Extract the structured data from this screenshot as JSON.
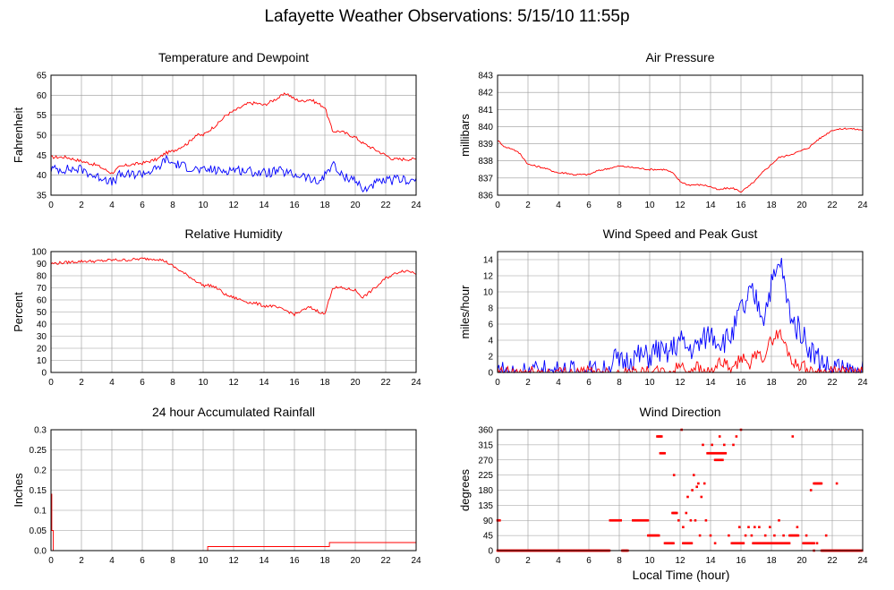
{
  "page": {
    "title": "Lafayette Weather Observations: 5/15/10 11:55p",
    "xlabel": "Local Time (hour)"
  },
  "colors": {
    "red": "#ff0000",
    "blue": "#0000ff",
    "grid": "#999999",
    "frame": "#000000"
  },
  "chart_data": [
    {
      "id": "temp",
      "type": "line",
      "title": "Temperature and Dewpoint",
      "xlabel": "",
      "ylabel": "Fahrenheit",
      "xlim": [
        0,
        24
      ],
      "ylim": [
        35,
        65
      ],
      "xticks": [
        "0",
        "2",
        "4",
        "6",
        "8",
        "10",
        "12",
        "14",
        "16",
        "18",
        "20",
        "22",
        "24"
      ],
      "yticks": [
        "35",
        "40",
        "45",
        "50",
        "55",
        "60",
        "65"
      ],
      "series": [
        {
          "color": "red",
          "noise": 0.4,
          "x": [
            0,
            1,
            2,
            3,
            4,
            4.5,
            5,
            6,
            7,
            7.5,
            8,
            9,
            9.5,
            10,
            10.5,
            11,
            11.5,
            12,
            12.5,
            13,
            13.5,
            14,
            14.5,
            15,
            15.5,
            16,
            16.5,
            17,
            17.5,
            18,
            18.5,
            19,
            20,
            20.5,
            21,
            22,
            22.5,
            23,
            24
          ],
          "y": [
            44.5,
            44.5,
            43.5,
            42.5,
            40.5,
            42,
            42.5,
            43,
            44,
            45.5,
            46,
            48,
            50,
            50,
            51.5,
            53,
            55,
            56,
            57,
            58,
            58,
            57.5,
            58.5,
            59.5,
            60.5,
            59,
            58.5,
            59,
            58,
            57,
            51,
            51,
            49.5,
            48,
            47,
            45,
            44,
            44,
            44
          ]
        },
        {
          "color": "blue",
          "noise": 1.2,
          "x": [
            0,
            1,
            2,
            3,
            3.5,
            4,
            4.5,
            5,
            6,
            7,
            7.5,
            8,
            9,
            10,
            10.5,
            11,
            12,
            13,
            14,
            15,
            15.5,
            16,
            16.5,
            17,
            17.5,
            18,
            18.5,
            19,
            20,
            20.5,
            21,
            22,
            23,
            24
          ],
          "y": [
            41.5,
            41.5,
            41.5,
            39.5,
            39.5,
            38,
            40,
            40,
            40.5,
            41.5,
            44,
            43,
            42,
            41,
            41.5,
            41,
            41.5,
            41,
            40.5,
            41,
            40.5,
            40,
            40,
            39,
            38,
            40,
            43,
            40,
            39,
            36,
            37.5,
            38.5,
            39,
            38.5
          ]
        }
      ]
    },
    {
      "id": "pressure",
      "type": "line",
      "title": "Air Pressure",
      "xlabel": "",
      "ylabel": "millibars",
      "xlim": [
        0,
        24
      ],
      "ylim": [
        836,
        843
      ],
      "xticks": [
        "0",
        "2",
        "4",
        "6",
        "8",
        "10",
        "12",
        "14",
        "16",
        "18",
        "20",
        "22",
        "24"
      ],
      "yticks": [
        "836",
        "837",
        "838",
        "839",
        "840",
        "841",
        "842",
        "843"
      ],
      "series": [
        {
          "color": "red",
          "noise": 0.05,
          "x": [
            0,
            0.5,
            1,
            1.5,
            2,
            3,
            4,
            4.5,
            5,
            6,
            6.5,
            7,
            7.5,
            8,
            9,
            10,
            10.5,
            11,
            11.5,
            12,
            12.5,
            13,
            13.5,
            14,
            14.5,
            15,
            15.5,
            16,
            16.5,
            17,
            17.5,
            18,
            18.5,
            19,
            20,
            20.5,
            21,
            21.5,
            22,
            23,
            24
          ],
          "y": [
            839.2,
            838.8,
            838.7,
            838.4,
            837.8,
            837.6,
            837.3,
            837.3,
            837.2,
            837.2,
            837.4,
            837.5,
            837.6,
            837.7,
            837.6,
            837.5,
            837.5,
            837.5,
            837.3,
            836.8,
            836.6,
            836.6,
            836.6,
            836.5,
            836.3,
            836.4,
            836.4,
            836.2,
            836.5,
            836.9,
            837.4,
            837.8,
            838.2,
            838.3,
            838.6,
            838.8,
            839.2,
            839.5,
            839.8,
            839.9,
            839.8
          ]
        }
      ]
    },
    {
      "id": "humidity",
      "type": "line",
      "title": "Relative Humidity",
      "xlabel": "",
      "ylabel": "Percent",
      "xlim": [
        0,
        24
      ],
      "ylim": [
        0,
        100
      ],
      "xticks": [
        "0",
        "2",
        "4",
        "6",
        "8",
        "10",
        "12",
        "14",
        "16",
        "18",
        "20",
        "22",
        "24"
      ],
      "yticks": [
        "0",
        "10",
        "20",
        "30",
        "40",
        "50",
        "60",
        "70",
        "80",
        "90",
        "100"
      ],
      "series": [
        {
          "color": "red",
          "noise": 1.2,
          "x": [
            0,
            1,
            2,
            3,
            4,
            5,
            6,
            7,
            7.5,
            8,
            8.5,
            9,
            9.5,
            10,
            10.5,
            11,
            11.5,
            12,
            12.5,
            13,
            13.5,
            14,
            14.5,
            15,
            15.5,
            16,
            16.5,
            17,
            17.5,
            18,
            18.5,
            19,
            20,
            20.5,
            21,
            21.5,
            22,
            23,
            23.5,
            24
          ],
          "y": [
            90,
            91,
            92,
            92,
            93,
            93,
            94,
            94,
            92,
            88,
            84,
            80,
            76,
            72,
            72,
            69,
            64,
            62,
            60,
            58,
            57,
            55,
            55,
            53,
            51,
            48,
            51,
            54,
            51,
            48,
            70,
            70,
            68,
            62,
            67,
            72,
            78,
            84,
            84,
            82
          ]
        }
      ]
    },
    {
      "id": "wind",
      "type": "line",
      "title": "Wind Speed and Peak Gust",
      "xlabel": "",
      "ylabel": "miles/hour",
      "xlim": [
        0,
        24
      ],
      "ylim": [
        0,
        15
      ],
      "xticks": [
        "0",
        "2",
        "4",
        "6",
        "8",
        "10",
        "12",
        "14",
        "16",
        "18",
        "20",
        "22",
        "24"
      ],
      "yticks": [
        "0",
        "2",
        "4",
        "6",
        "8",
        "10",
        "12",
        "14"
      ],
      "series": [
        {
          "color": "blue",
          "noise": 1.6,
          "x": [
            0,
            0.2,
            0.3,
            7.3,
            7.6,
            8,
            9,
            10,
            10.5,
            11,
            11.5,
            12,
            12.5,
            13,
            13.5,
            14,
            14.5,
            15,
            15.5,
            16,
            16.3,
            16.6,
            17,
            17.5,
            18,
            18.3,
            18.6,
            19,
            19.5,
            20,
            20.5,
            21,
            21.5,
            22,
            22.3,
            22.5,
            24
          ],
          "y": [
            0,
            1,
            0,
            0,
            2,
            1,
            2,
            2,
            3,
            2,
            3,
            4,
            3,
            3,
            4,
            5,
            4,
            4,
            5,
            8,
            8,
            10,
            9,
            7,
            11,
            12,
            14,
            9,
            6,
            5,
            3,
            2,
            1,
            0,
            1,
            0,
            0
          ]
        },
        {
          "color": "red",
          "noise": 0.8,
          "x": [
            0,
            11.5,
            12,
            12.5,
            13,
            13.5,
            14,
            14.5,
            15,
            15.5,
            16,
            16.5,
            17,
            17.5,
            18,
            18.5,
            19,
            19.5,
            20,
            20.5,
            21,
            24
          ],
          "y": [
            0,
            0,
            1,
            0,
            1,
            0,
            0,
            1,
            1,
            0,
            2,
            1,
            2,
            2,
            4,
            5,
            3,
            1,
            1,
            0,
            0,
            0
          ]
        }
      ]
    },
    {
      "id": "rain",
      "type": "line",
      "title": "24 hour Accumulated Rainfall",
      "xlabel": "",
      "ylabel": "Inches",
      "xlim": [
        0,
        24
      ],
      "ylim": [
        0,
        0.3
      ],
      "xticks": [
        "0",
        "2",
        "4",
        "6",
        "8",
        "10",
        "12",
        "14",
        "16",
        "18",
        "20",
        "22",
        "24"
      ],
      "yticks": [
        "0.0",
        "0.05",
        "0.1",
        "0.15",
        "0.2",
        "0.25",
        "0.3"
      ],
      "series": [
        {
          "color": "red",
          "noise": 0,
          "step": true,
          "x": [
            0,
            0.05,
            0.15,
            10.3,
            18.3,
            24
          ],
          "y": [
            0.14,
            0.05,
            0,
            0.01,
            0.02,
            0.02
          ]
        }
      ]
    },
    {
      "id": "winddir",
      "type": "scatter",
      "title": "Wind Direction",
      "xlabel": "",
      "ylabel": "degrees",
      "xlim": [
        0,
        24
      ],
      "ylim": [
        0,
        360
      ],
      "xticks": [
        "0",
        "2",
        "4",
        "6",
        "8",
        "10",
        "12",
        "14",
        "16",
        "18",
        "20",
        "22",
        "24"
      ],
      "yticks": [
        "0",
        "45",
        "90",
        "135",
        "180",
        "225",
        "270",
        "315",
        "360"
      ],
      "series": [
        {
          "color": "red",
          "runs": [
            {
              "x0": 0,
              "x1": 7.4,
              "y": 0,
              "step": 0.07
            },
            {
              "x0": 0,
              "x1": 0.2,
              "y": 90,
              "step": 0.07
            },
            {
              "x0": 7.4,
              "x1": 8.1,
              "y": 90,
              "step": 0.07
            },
            {
              "x0": 8.2,
              "x1": 8.6,
              "y": 0,
              "step": 0.07
            },
            {
              "x0": 8.9,
              "x1": 9.9,
              "y": 90,
              "step": 0.07
            },
            {
              "x0": 9.9,
              "x1": 10.6,
              "y": 45,
              "step": 0.07
            },
            {
              "x0": 10.5,
              "x1": 10.8,
              "y": 340,
              "step": 0.07
            },
            {
              "x0": 10.7,
              "x1": 11,
              "y": 290,
              "step": 0.07
            },
            {
              "x0": 11,
              "x1": 11.6,
              "y": 22,
              "step": 0.07
            },
            {
              "x0": 11.5,
              "x1": 11.8,
              "y": 112,
              "step": 0.07
            },
            {
              "x0": 12.2,
              "x1": 12.8,
              "y": 22,
              "step": 0.07
            },
            {
              "x0": 13.8,
              "x1": 15,
              "y": 290,
              "step": 0.07
            },
            {
              "x0": 14.3,
              "x1": 14.8,
              "y": 270,
              "step": 0.07
            },
            {
              "x0": 15.4,
              "x1": 16.2,
              "y": 22,
              "step": 0.07
            },
            {
              "x0": 16.8,
              "x1": 19.2,
              "y": 22,
              "step": 0.07
            },
            {
              "x0": 19.2,
              "x1": 19.8,
              "y": 45,
              "step": 0.07
            },
            {
              "x0": 20.1,
              "x1": 20.8,
              "y": 22,
              "step": 0.07
            },
            {
              "x0": 20.8,
              "x1": 21.3,
              "y": 200,
              "step": 0.07
            },
            {
              "x0": 21.3,
              "x1": 24,
              "y": 0,
              "step": 0.07
            }
          ],
          "points": [
            [
              11.6,
              225
            ],
            [
              11.9,
              90
            ],
            [
              12.1,
              360
            ],
            [
              12.2,
              70
            ],
            [
              12.4,
              112
            ],
            [
              12.5,
              160
            ],
            [
              12.7,
              90
            ],
            [
              12.8,
              180
            ],
            [
              12.9,
              225
            ],
            [
              13,
              90
            ],
            [
              13.1,
              190
            ],
            [
              13.2,
              200
            ],
            [
              13.4,
              160
            ],
            [
              13.5,
              315
            ],
            [
              13.6,
              200
            ],
            [
              13.3,
              45
            ],
            [
              13.7,
              90
            ],
            [
              14,
              45
            ],
            [
              14.1,
              315
            ],
            [
              14.3,
              22
            ],
            [
              14.6,
              340
            ],
            [
              14.9,
              315
            ],
            [
              15.2,
              45
            ],
            [
              15.5,
              315
            ],
            [
              15.7,
              340
            ],
            [
              16,
              360
            ],
            [
              15.9,
              70
            ],
            [
              16.3,
              45
            ],
            [
              16.5,
              70
            ],
            [
              16.7,
              45
            ],
            [
              16.9,
              70
            ],
            [
              17.2,
              70
            ],
            [
              17.6,
              45
            ],
            [
              17.9,
              70
            ],
            [
              18.2,
              45
            ],
            [
              18.5,
              90
            ],
            [
              18.8,
              45
            ],
            [
              19.4,
              340
            ],
            [
              19.7,
              70
            ],
            [
              20.3,
              45
            ],
            [
              20.6,
              180
            ],
            [
              20.8,
              0
            ],
            [
              21.6,
              45
            ],
            [
              22.3,
              200
            ],
            [
              21,
              22
            ]
          ]
        }
      ]
    }
  ]
}
